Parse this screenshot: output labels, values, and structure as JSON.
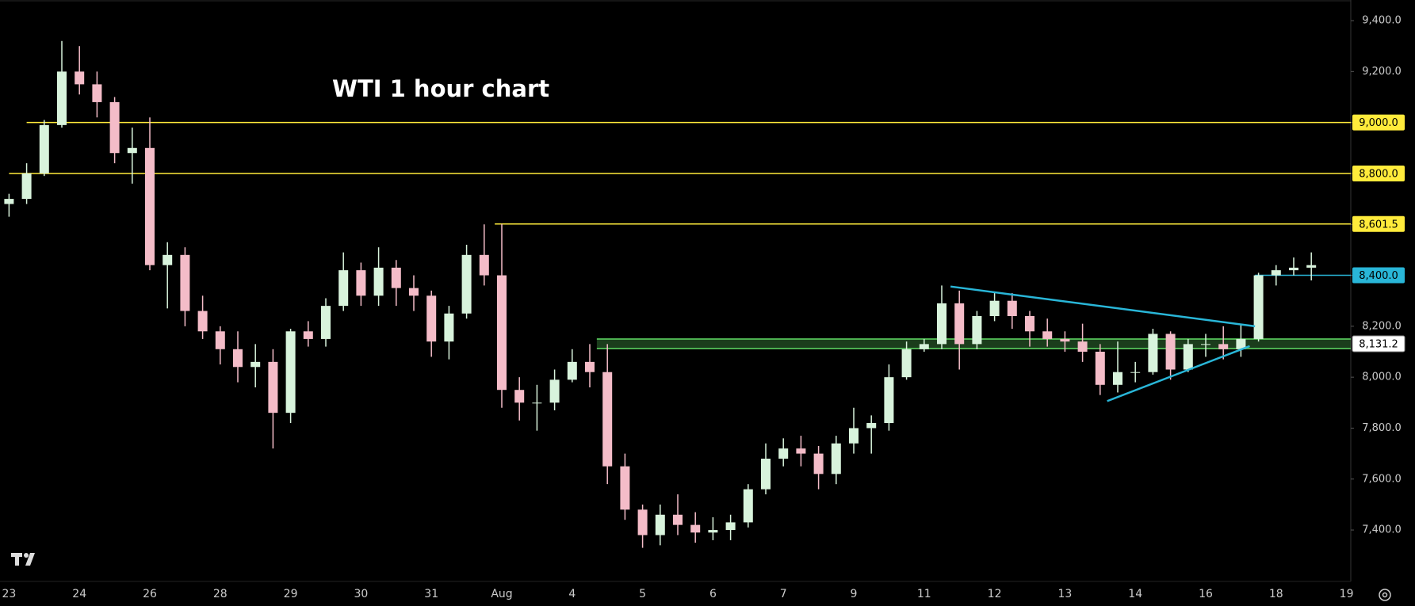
{
  "chart_data": {
    "type": "candlestick",
    "title": "WTI 1 hour chart",
    "categories": [
      "23",
      null,
      null,
      null,
      "24",
      null,
      null,
      null,
      "26",
      null,
      null,
      null,
      "28",
      null,
      null,
      null,
      "29",
      null,
      null,
      null,
      "30",
      null,
      null,
      null,
      "31",
      null,
      null,
      null,
      "Aug",
      null,
      null,
      null,
      "4",
      null,
      null,
      null,
      "5",
      null,
      null,
      null,
      "6",
      null,
      null,
      null,
      "7",
      null,
      null,
      null,
      "9",
      null,
      null,
      null,
      "11",
      null,
      null,
      null,
      "12",
      null,
      null,
      null,
      "13",
      null,
      null,
      null,
      "14",
      null,
      null,
      null,
      "16",
      null,
      null,
      null,
      "18",
      null,
      null,
      null,
      "19"
    ],
    "open": [
      8680,
      8700,
      8800,
      8990,
      9200,
      9150,
      9080,
      8880,
      8900,
      8440,
      8480,
      8260,
      8180,
      8110,
      8040,
      8060,
      7860,
      8180,
      8150,
      8280,
      8420,
      8320,
      8430,
      8350,
      8320,
      8140,
      8250,
      8480,
      8400,
      7950,
      7900,
      7900,
      7990,
      8060,
      8020,
      7650,
      7480,
      7380,
      7460,
      7420,
      7390,
      7400,
      7430,
      7560,
      7680,
      7720,
      7700,
      7620,
      7740,
      7800,
      7820,
      8000,
      8110,
      8130,
      8290,
      8130,
      8240,
      8300,
      8240,
      8180,
      8150,
      8140,
      8100,
      7970,
      8020,
      8020,
      8170,
      8030,
      8130,
      8130,
      8110,
      8150,
      8400,
      8420,
      8430,
      null,
      null
    ],
    "high": [
      8720,
      8840,
      9010,
      9320,
      9300,
      9200,
      9100,
      8980,
      9020,
      8530,
      8510,
      8320,
      8200,
      8180,
      8130,
      8110,
      8190,
      8220,
      8310,
      8490,
      8450,
      8510,
      8460,
      8400,
      8340,
      8280,
      8520,
      8600,
      8601.5,
      8000,
      7970,
      8030,
      8110,
      8130,
      8130,
      7700,
      7500,
      7500,
      7540,
      7470,
      7450,
      7460,
      7580,
      7740,
      7760,
      7770,
      7730,
      7770,
      7880,
      7850,
      8050,
      8140,
      8150,
      8360,
      8340,
      8260,
      8330,
      8330,
      8260,
      8230,
      8180,
      8210,
      8130,
      8140,
      8060,
      8190,
      8180,
      8150,
      8170,
      8200,
      8210,
      8410,
      8440,
      8470,
      8490,
      null,
      null
    ],
    "low": [
      8630,
      8680,
      8790,
      8980,
      9110,
      9020,
      8840,
      8760,
      8420,
      8270,
      8200,
      8150,
      8050,
      7980,
      7960,
      7720,
      7820,
      8120,
      8120,
      8260,
      8280,
      8280,
      8280,
      8260,
      8080,
      8070,
      8230,
      8360,
      7880,
      7830,
      7790,
      7870,
      7980,
      7960,
      7580,
      7440,
      7330,
      7340,
      7380,
      7350,
      7360,
      7360,
      7410,
      7540,
      7650,
      7650,
      7560,
      7580,
      7700,
      7700,
      7790,
      7990,
      8100,
      8110,
      8030,
      8110,
      8220,
      8190,
      8120,
      8120,
      8100,
      8060,
      7930,
      7940,
      7980,
      8010,
      7990,
      8020,
      8080,
      8070,
      8080,
      8140,
      8360,
      8400,
      8380,
      null,
      null
    ],
    "close": [
      8700,
      8800,
      8990,
      9200,
      9150,
      9080,
      8880,
      8900,
      8440,
      8480,
      8260,
      8180,
      8110,
      8040,
      8060,
      7860,
      8180,
      8150,
      8280,
      8420,
      8320,
      8430,
      8350,
      8320,
      8140,
      8250,
      8480,
      8400,
      7950,
      7900,
      7900,
      7990,
      8060,
      8020,
      7650,
      7480,
      7380,
      7460,
      7420,
      7390,
      7400,
      7430,
      7560,
      7680,
      7720,
      7700,
      7620,
      7740,
      7800,
      7820,
      8000,
      8110,
      8130,
      8290,
      8130,
      8240,
      8300,
      8240,
      8180,
      8150,
      8140,
      8100,
      7970,
      8020,
      8020,
      8170,
      8030,
      8130,
      8130,
      8110,
      8150,
      8400,
      8420,
      8430,
      8440,
      null,
      null
    ],
    "up_color": "#d8f3dc",
    "down_color": "#f4bcc8",
    "ylim": [
      7198,
      9481
    ],
    "yticks": [
      {
        "value": 7400,
        "label": "7,400.0"
      },
      {
        "value": 7600,
        "label": "7,600.0"
      },
      {
        "value": 7800,
        "label": "7,800.0"
      },
      {
        "value": 8000,
        "label": "8,000.0"
      },
      {
        "value": 8200,
        "label": "8,200.0"
      },
      {
        "value": 8400,
        "label": "8,400.0"
      },
      {
        "value": 8600,
        "label": "8,600.0"
      },
      {
        "value": 8800,
        "label": "8,800.0"
      },
      {
        "value": 9000,
        "label": "9,000.0"
      },
      {
        "value": 9200,
        "label": "9,200.0"
      },
      {
        "value": 9400,
        "label": "9,400.0"
      }
    ],
    "levels": [
      {
        "value": 9000,
        "label": "9,000.0",
        "color": "#ffeb3b",
        "start": 1
      },
      {
        "value": 8800,
        "label": "8,800.0",
        "color": "#ffeb3b",
        "start": 0
      },
      {
        "value": 8601.5,
        "label": "8,601.5",
        "color": "#ffeb3b",
        "start": 27.6
      },
      {
        "value": 8400,
        "label": "8,400.0",
        "color": "#29b6d8",
        "start": 70.8
      },
      {
        "value": 8131.2,
        "label": "8,131.2",
        "color": "#4caf50",
        "start": 33.4,
        "band": true
      }
    ],
    "trendlines": [
      {
        "color": "#29b6d8",
        "points": [
          [
            53.5,
            8356
          ],
          [
            70.8,
            8200
          ]
        ]
      },
      {
        "color": "#29b6d8",
        "points": [
          [
            62.4,
            7906
          ],
          [
            70.5,
            8122
          ]
        ]
      }
    ]
  }
}
